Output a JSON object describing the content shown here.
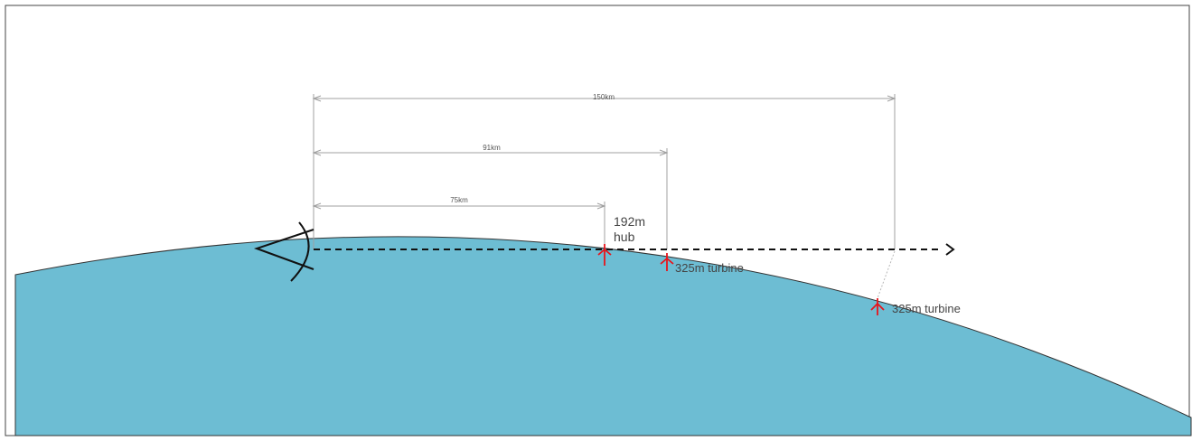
{
  "diagram": {
    "dimensions": {
      "d150": "150km",
      "d91": "91km",
      "d75": "75km"
    },
    "labels": {
      "hub_height": "192m",
      "hub_word": "hub",
      "turbine_near": "325m turbine",
      "turbine_far": "325m turbine"
    },
    "watermark": "",
    "colors": {
      "sea": "#6dbdd3",
      "turbine": "#e8141b",
      "dimension_line": "#a0a0a0",
      "sight_line": "#111111"
    }
  }
}
